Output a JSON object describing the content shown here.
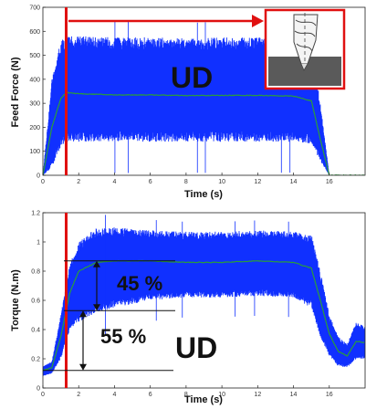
{
  "chart_data": [
    {
      "type": "line",
      "ylabel": "Feed Force (N)",
      "xlabel": "Time (s)",
      "xlim": [
        0,
        18
      ],
      "ylim": [
        0,
        700
      ],
      "xticks": [
        0,
        2,
        4,
        6,
        8,
        10,
        12,
        14,
        16
      ],
      "yticks": [
        0,
        100,
        200,
        300,
        400,
        500,
        600,
        700
      ],
      "grid": false,
      "colors": {
        "signal": "#1030ff",
        "mean": "#2a9d3a",
        "marker": "#e01010",
        "arrow": "#e01010"
      },
      "series": [
        {
          "role": "signal-upper-envelope",
          "x": [
            0,
            0.5,
            1.0,
            1.3,
            2,
            4,
            6,
            8,
            10,
            12,
            14,
            15,
            15.5,
            16,
            17.5,
            18
          ],
          "y": [
            0,
            400,
            560,
            580,
            580,
            575,
            575,
            570,
            575,
            575,
            570,
            540,
            300,
            0,
            0,
            0
          ]
        },
        {
          "role": "signal-lower-envelope",
          "x": [
            0,
            0.5,
            1.0,
            1.3,
            2,
            4,
            6,
            8,
            10,
            12,
            14,
            15,
            15.5,
            16,
            17.5,
            18
          ],
          "y": [
            0,
            30,
            120,
            140,
            140,
            140,
            140,
            140,
            140,
            140,
            140,
            130,
            60,
            0,
            0,
            0
          ]
        },
        {
          "role": "mean",
          "x": [
            0,
            0.5,
            1.0,
            1.3,
            2,
            4,
            6,
            8,
            10,
            12,
            14,
            15,
            15.5,
            16,
            17.5,
            18
          ],
          "y": [
            0,
            200,
            320,
            345,
            340,
            335,
            335,
            332,
            333,
            333,
            330,
            310,
            150,
            0,
            0,
            0
          ]
        }
      ],
      "annotations": {
        "marker_x": 1.3,
        "label": "UD"
      }
    },
    {
      "type": "line",
      "ylabel": "Torque (N.m)",
      "xlabel": "Time (s)",
      "xlim": [
        0,
        18
      ],
      "ylim": [
        0,
        1.2
      ],
      "xticks": [
        0,
        2,
        4,
        6,
        8,
        10,
        12,
        14,
        16
      ],
      "yticks": [
        0,
        0.2,
        0.4,
        0.6,
        0.8,
        1,
        1.2
      ],
      "grid": false,
      "colors": {
        "signal": "#1030ff",
        "mean": "#2a9d3a",
        "marker": "#e01010",
        "arrow": "#111111"
      },
      "series": [
        {
          "role": "signal-upper-envelope",
          "x": [
            0,
            0.5,
            1.0,
            1.5,
            2,
            3,
            4,
            6,
            8,
            10,
            12,
            14,
            15,
            15.5,
            16,
            16.5,
            17,
            17.5,
            18
          ],
          "y": [
            0.15,
            0.18,
            0.5,
            0.85,
            1.0,
            1.1,
            1.1,
            1.08,
            1.07,
            1.07,
            1.08,
            1.07,
            1.05,
            0.8,
            0.5,
            0.35,
            0.3,
            0.45,
            0.42
          ]
        },
        {
          "role": "signal-lower-envelope",
          "x": [
            0,
            0.5,
            1.0,
            1.5,
            2,
            3,
            4,
            6,
            8,
            10,
            12,
            14,
            15,
            15.5,
            16,
            16.5,
            17,
            17.5,
            18
          ],
          "y": [
            0.08,
            0.1,
            0.2,
            0.4,
            0.45,
            0.52,
            0.55,
            0.6,
            0.62,
            0.62,
            0.63,
            0.62,
            0.55,
            0.35,
            0.22,
            0.15,
            0.14,
            0.2,
            0.2
          ]
        },
        {
          "role": "mean",
          "x": [
            0,
            0.5,
            1.0,
            1.5,
            2,
            3,
            4,
            6,
            8,
            10,
            12,
            14,
            15,
            15.5,
            16,
            16.5,
            17,
            17.5,
            18
          ],
          "y": [
            0.12,
            0.14,
            0.35,
            0.65,
            0.8,
            0.86,
            0.87,
            0.87,
            0.86,
            0.86,
            0.87,
            0.86,
            0.82,
            0.6,
            0.37,
            0.25,
            0.22,
            0.32,
            0.31
          ]
        }
      ],
      "annotations": {
        "marker_x": 1.3,
        "label": "UD",
        "levels": [
          0.87,
          0.53,
          0.12
        ],
        "upper_percent": "45 %",
        "lower_percent": "55 %"
      }
    }
  ]
}
